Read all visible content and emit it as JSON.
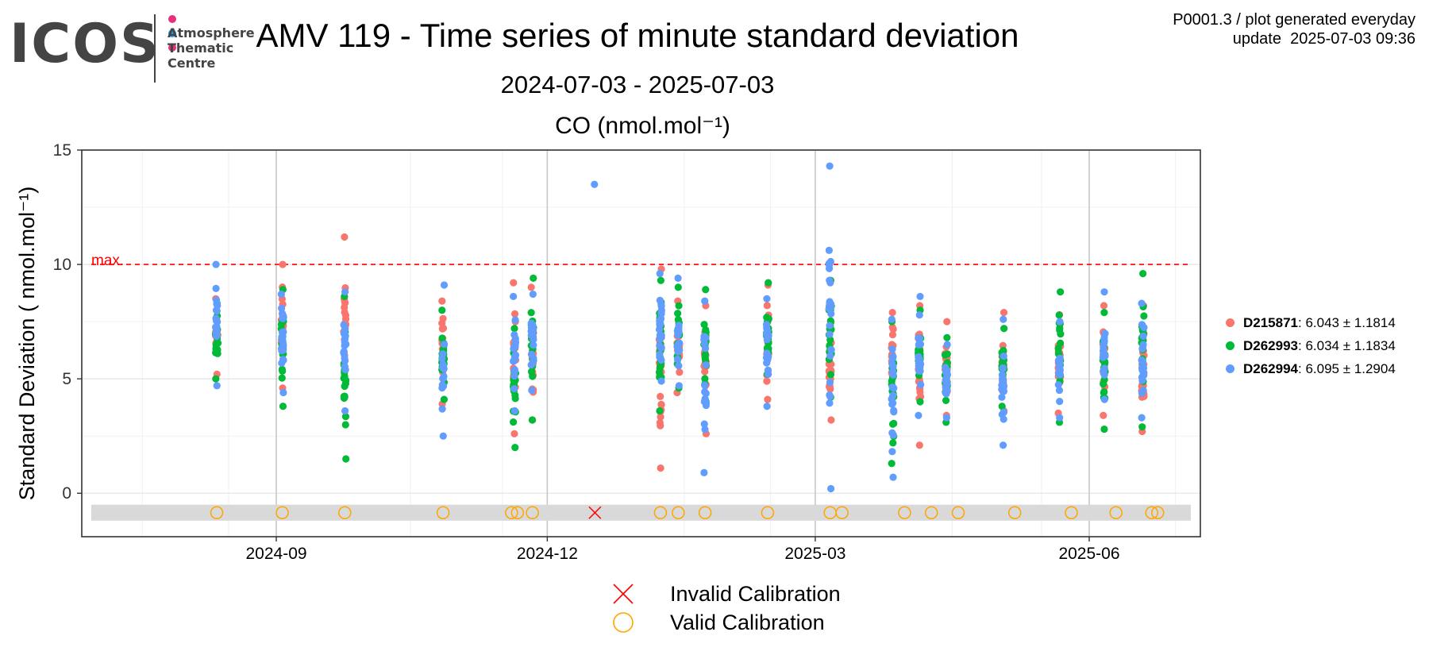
{
  "logo": {
    "wordmark": "ICOS",
    "lines": [
      "Atmosphere",
      "Thematic",
      "Centre"
    ],
    "dot_colors": [
      "#e6327a",
      "#1e9be6",
      "#e6327a"
    ]
  },
  "header": {
    "title": "AMV 119 - Time series of minute standard deviation",
    "subtitle": "2024-07-03 - 2025-07-03",
    "meta_line1": "P0001.3 / plot generated everyday",
    "meta_line2": "update  2025-07-03 09:36"
  },
  "chart_data": {
    "type": "scatter",
    "title": "CO (nmol.mol⁻¹)",
    "ylabel": "Standard Deviation ( nmol.mol⁻¹)",
    "xlim": [
      "2024-07-03",
      "2025-07-03"
    ],
    "ylim": [
      -1.9,
      15
    ],
    "yticks": [
      0,
      5,
      10,
      15
    ],
    "xticks": [
      "2024-09-01",
      "2024-12-01",
      "2025-03-01",
      "2025-06-01"
    ],
    "xtick_labels": [
      "2024-09",
      "2024-12",
      "2025-03",
      "2025-06"
    ],
    "grid": true,
    "max_line": {
      "value": 10,
      "label": "max.",
      "color": "#ff0000"
    },
    "calibration_band": {
      "y_low": -1.2,
      "y_high": -0.5
    },
    "series": [
      {
        "name": "D215871",
        "stats": ": 6.043 ± 1.1814",
        "color": "#f8766d",
        "clusters": [
          {
            "date": "2024-08-12",
            "min": 5.2,
            "max": 8.5,
            "n": 18
          },
          {
            "date": "2024-09-03",
            "min": 4.6,
            "max": 10.0,
            "n": 22
          },
          {
            "date": "2024-09-24",
            "min": 4.2,
            "max": 11.2,
            "n": 18
          },
          {
            "date": "2024-10-27",
            "min": 3.9,
            "max": 8.4,
            "n": 18
          },
          {
            "date": "2024-11-20",
            "min": 2.6,
            "max": 9.2,
            "n": 22
          },
          {
            "date": "2024-11-26",
            "min": 3.2,
            "max": 9.0,
            "n": 20
          },
          {
            "date": "2025-01-08",
            "min": 1.1,
            "max": 9.8,
            "n": 26
          },
          {
            "date": "2025-01-14",
            "min": 4.4,
            "max": 8.4,
            "n": 18
          },
          {
            "date": "2025-01-23",
            "min": 2.6,
            "max": 8.2,
            "n": 18
          },
          {
            "date": "2025-02-13",
            "min": 4.1,
            "max": 9.1,
            "n": 20
          },
          {
            "date": "2025-03-06",
            "min": 3.2,
            "max": 8.3,
            "n": 22
          },
          {
            "date": "2025-03-27",
            "min": 4.2,
            "max": 7.9,
            "n": 18
          },
          {
            "date": "2025-04-05",
            "min": 2.1,
            "max": 8.2,
            "n": 20
          },
          {
            "date": "2025-04-14",
            "min": 3.4,
            "max": 7.5,
            "n": 18
          },
          {
            "date": "2025-05-03",
            "min": 3.6,
            "max": 7.9,
            "n": 18
          },
          {
            "date": "2025-05-22",
            "min": 3.5,
            "max": 7.8,
            "n": 18
          },
          {
            "date": "2025-06-06",
            "min": 3.4,
            "max": 8.2,
            "n": 18
          },
          {
            "date": "2025-06-19",
            "min": 2.7,
            "max": 8.2,
            "n": 22
          }
        ]
      },
      {
        "name": "D262993",
        "stats": ": 6.034 ± 1.1834",
        "color": "#00ba38",
        "clusters": [
          {
            "date": "2024-08-12",
            "min": 5.0,
            "max": 8.3,
            "n": 18
          },
          {
            "date": "2024-09-03",
            "min": 3.8,
            "max": 8.9,
            "n": 22
          },
          {
            "date": "2024-09-24",
            "min": 1.5,
            "max": 8.6,
            "n": 18
          },
          {
            "date": "2024-10-27",
            "min": 4.1,
            "max": 8.0,
            "n": 18
          },
          {
            "date": "2024-11-20",
            "min": 2.0,
            "max": 7.2,
            "n": 22
          },
          {
            "date": "2024-11-26",
            "min": 3.2,
            "max": 9.4,
            "n": 20
          },
          {
            "date": "2025-01-08",
            "min": 3.6,
            "max": 9.3,
            "n": 26
          },
          {
            "date": "2025-01-14",
            "min": 4.6,
            "max": 9.0,
            "n": 18
          },
          {
            "date": "2025-01-23",
            "min": 4.0,
            "max": 8.9,
            "n": 18
          },
          {
            "date": "2025-02-13",
            "min": 5.2,
            "max": 9.2,
            "n": 20
          },
          {
            "date": "2025-03-06",
            "min": 4.2,
            "max": 9.3,
            "n": 22
          },
          {
            "date": "2025-03-27",
            "min": 1.3,
            "max": 7.5,
            "n": 18
          },
          {
            "date": "2025-04-05",
            "min": 4.0,
            "max": 8.0,
            "n": 20
          },
          {
            "date": "2025-04-14",
            "min": 3.1,
            "max": 6.8,
            "n": 18
          },
          {
            "date": "2025-05-03",
            "min": 3.8,
            "max": 7.2,
            "n": 18
          },
          {
            "date": "2025-05-22",
            "min": 3.1,
            "max": 8.8,
            "n": 18
          },
          {
            "date": "2025-06-06",
            "min": 2.8,
            "max": 7.9,
            "n": 18
          },
          {
            "date": "2025-06-19",
            "min": 2.9,
            "max": 9.6,
            "n": 22
          }
        ]
      },
      {
        "name": "D262994",
        "stats": ": 6.095 ± 1.2904",
        "color": "#619cff",
        "clusters": [
          {
            "date": "2024-08-12",
            "min": 4.7,
            "max": 10.0,
            "n": 18
          },
          {
            "date": "2024-09-03",
            "min": 4.4,
            "max": 8.7,
            "n": 22
          },
          {
            "date": "2024-09-24",
            "min": 3.6,
            "max": 8.8,
            "n": 18
          },
          {
            "date": "2024-10-27",
            "min": 2.5,
            "max": 9.1,
            "n": 18
          },
          {
            "date": "2024-11-20",
            "min": 3.6,
            "max": 8.6,
            "n": 22
          },
          {
            "date": "2024-11-26",
            "min": 4.5,
            "max": 8.7,
            "n": 20
          },
          {
            "date": "2024-12-17",
            "min": 13.5,
            "max": 13.5,
            "n": 1
          },
          {
            "date": "2025-01-08",
            "min": 4.9,
            "max": 9.6,
            "n": 26
          },
          {
            "date": "2025-01-14",
            "min": 4.7,
            "max": 9.4,
            "n": 18
          },
          {
            "date": "2025-01-23",
            "min": 0.9,
            "max": 8.4,
            "n": 18
          },
          {
            "date": "2025-02-13",
            "min": 3.8,
            "max": 8.5,
            "n": 20
          },
          {
            "date": "2025-03-06",
            "min": 0.2,
            "max": 14.3,
            "n": 24
          },
          {
            "date": "2025-03-27",
            "min": 0.7,
            "max": 7.6,
            "n": 20
          },
          {
            "date": "2025-04-05",
            "min": 3.4,
            "max": 8.6,
            "n": 22
          },
          {
            "date": "2025-04-14",
            "min": 3.3,
            "max": 6.5,
            "n": 18
          },
          {
            "date": "2025-05-03",
            "min": 2.1,
            "max": 7.6,
            "n": 18
          },
          {
            "date": "2025-05-22",
            "min": 3.3,
            "max": 7.5,
            "n": 18
          },
          {
            "date": "2025-06-06",
            "min": 4.1,
            "max": 8.8,
            "n": 18
          },
          {
            "date": "2025-06-19",
            "min": 3.3,
            "max": 8.3,
            "n": 22
          }
        ]
      }
    ],
    "calibrations": {
      "valid": [
        "2024-08-12",
        "2024-09-03",
        "2024-09-24",
        "2024-10-27",
        "2024-11-19",
        "2024-11-21",
        "2024-11-26",
        "2025-01-08",
        "2025-01-14",
        "2025-01-23",
        "2025-02-13",
        "2025-03-06",
        "2025-03-10",
        "2025-03-31",
        "2025-04-09",
        "2025-04-18",
        "2025-05-07",
        "2025-05-26",
        "2025-06-10",
        "2025-06-22",
        "2025-06-24"
      ],
      "invalid": [
        "2024-12-17"
      ],
      "valid_label": "Valid Calibration",
      "invalid_label": "Invalid Calibration",
      "valid_color": "#ffa500",
      "invalid_color": "#ff0000"
    }
  }
}
